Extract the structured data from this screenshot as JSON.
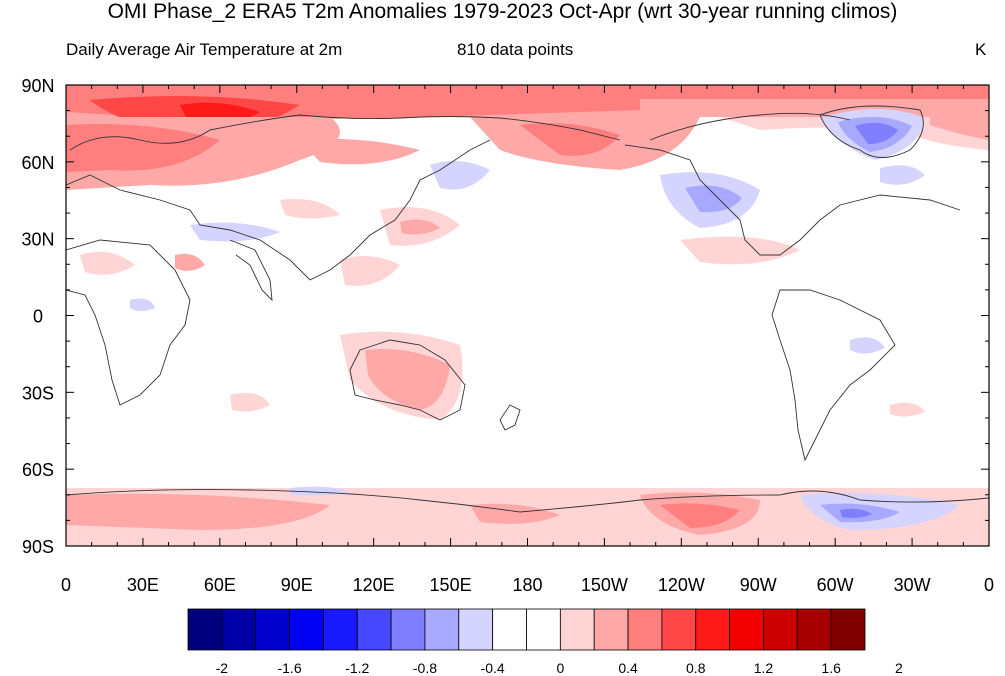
{
  "title": "OMI Phase_2 ERA5 T2m Anomalies 1979-2023 Oct-Apr (wrt 30-year running climos)",
  "subtitle_left": "Daily Average Air Temperature at 2m",
  "subtitle_center": "810 data points",
  "subtitle_right": "K",
  "y_tick_labels": [
    "90N",
    "60N",
    "30N",
    "0",
    "30S",
    "60S",
    "90S"
  ],
  "x_tick_labels": [
    "0",
    "30E",
    "60E",
    "90E",
    "120E",
    "150E",
    "180",
    "150W",
    "120W",
    "90W",
    "60W",
    "30W",
    "0"
  ],
  "colorbar": {
    "colors": [
      "#00007f",
      "#0000a6",
      "#0000cc",
      "#0000f2",
      "#1a1aff",
      "#4747ff",
      "#7f7fff",
      "#a8a8ff",
      "#d4d4ff",
      "#ffffff",
      "#ffffff",
      "#ffd4d4",
      "#ffa8a8",
      "#ff7f7f",
      "#ff4747",
      "#ff1a1a",
      "#f20000",
      "#cc0000",
      "#a60000",
      "#7f0000"
    ],
    "tick_labels": [
      "-2",
      "-1.6",
      "-1.2",
      "-0.8",
      "-0.4",
      "0",
      "0.4",
      "0.8",
      "1.2",
      "1.6",
      "2"
    ]
  }
}
